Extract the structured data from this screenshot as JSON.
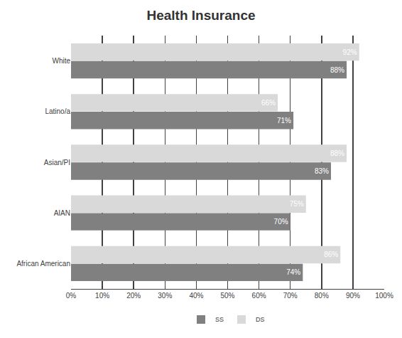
{
  "chart_data": {
    "type": "bar",
    "title": "Health Insurance",
    "orientation": "horizontal",
    "categories": [
      "White",
      "Latino/a",
      "Asian/PI",
      "AIAN",
      "African American"
    ],
    "series": [
      {
        "name": "SS",
        "color": "#808080",
        "values": [
          88,
          71,
          83,
          70,
          74
        ],
        "value_labels": [
          "88%",
          "71%",
          "83%",
          "70%",
          "74%"
        ]
      },
      {
        "name": "DS",
        "color": "#d9d9d9",
        "values": [
          92,
          66,
          88,
          75,
          86
        ],
        "value_labels": [
          "92%",
          "66%",
          "88%",
          "75%",
          "86%"
        ]
      }
    ],
    "xlim": [
      0,
      100
    ],
    "xticks": [
      {
        "value": 0,
        "label": "0%"
      },
      {
        "value": 10,
        "label": "10%"
      },
      {
        "value": 20,
        "label": "20%"
      },
      {
        "value": 30,
        "label": "30%"
      },
      {
        "value": 40,
        "label": "40%"
      },
      {
        "value": 50,
        "label": "50%"
      },
      {
        "value": 60,
        "label": "60%"
      },
      {
        "value": 70,
        "label": "70%"
      },
      {
        "value": 80,
        "label": "80%"
      },
      {
        "value": 90,
        "label": "90%"
      },
      {
        "value": 100,
        "label": "100%"
      }
    ],
    "grid": true,
    "data_labels": true,
    "legend": "bottom"
  }
}
